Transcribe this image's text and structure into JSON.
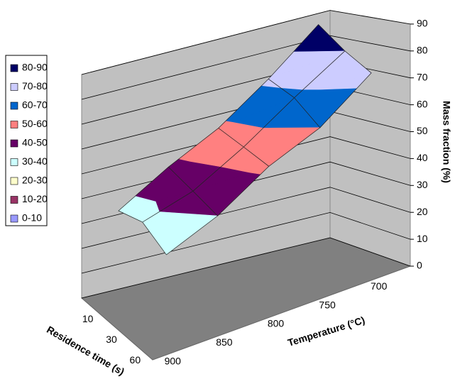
{
  "chart_data": {
    "type": "surface",
    "categories": [
      900,
      850,
      800,
      750,
      700
    ],
    "depth_categories": [
      10,
      30,
      60
    ],
    "values": [
      [
        36,
        38,
        32
      ],
      [
        48,
        44,
        40
      ],
      [
        58,
        55,
        52
      ],
      [
        72,
        68,
        60
      ],
      [
        88,
        80,
        74
      ]
    ],
    "zlim": [
      0,
      90
    ],
    "zticks": [
      0,
      10,
      20,
      30,
      40,
      50,
      60,
      70,
      80,
      90
    ],
    "x_label": "Temperature (°C)",
    "depth_label": "Residence time (s)",
    "z_label": "Mass fraction (%)",
    "bands": [
      {
        "name": "80-90",
        "color": "#000066"
      },
      {
        "name": "70-80",
        "color": "#ccccff"
      },
      {
        "name": "60-70",
        "color": "#0066cc"
      },
      {
        "name": "50-60",
        "color": "#ff8080"
      },
      {
        "name": "40-50",
        "color": "#660066"
      },
      {
        "name": "30-40",
        "color": "#ccffff"
      },
      {
        "name": "20-30",
        "color": "#ffffcc"
      },
      {
        "name": "10-20",
        "color": "#993366"
      },
      {
        "name": "0-10",
        "color": "#9999ff"
      }
    ],
    "grid": true
  }
}
